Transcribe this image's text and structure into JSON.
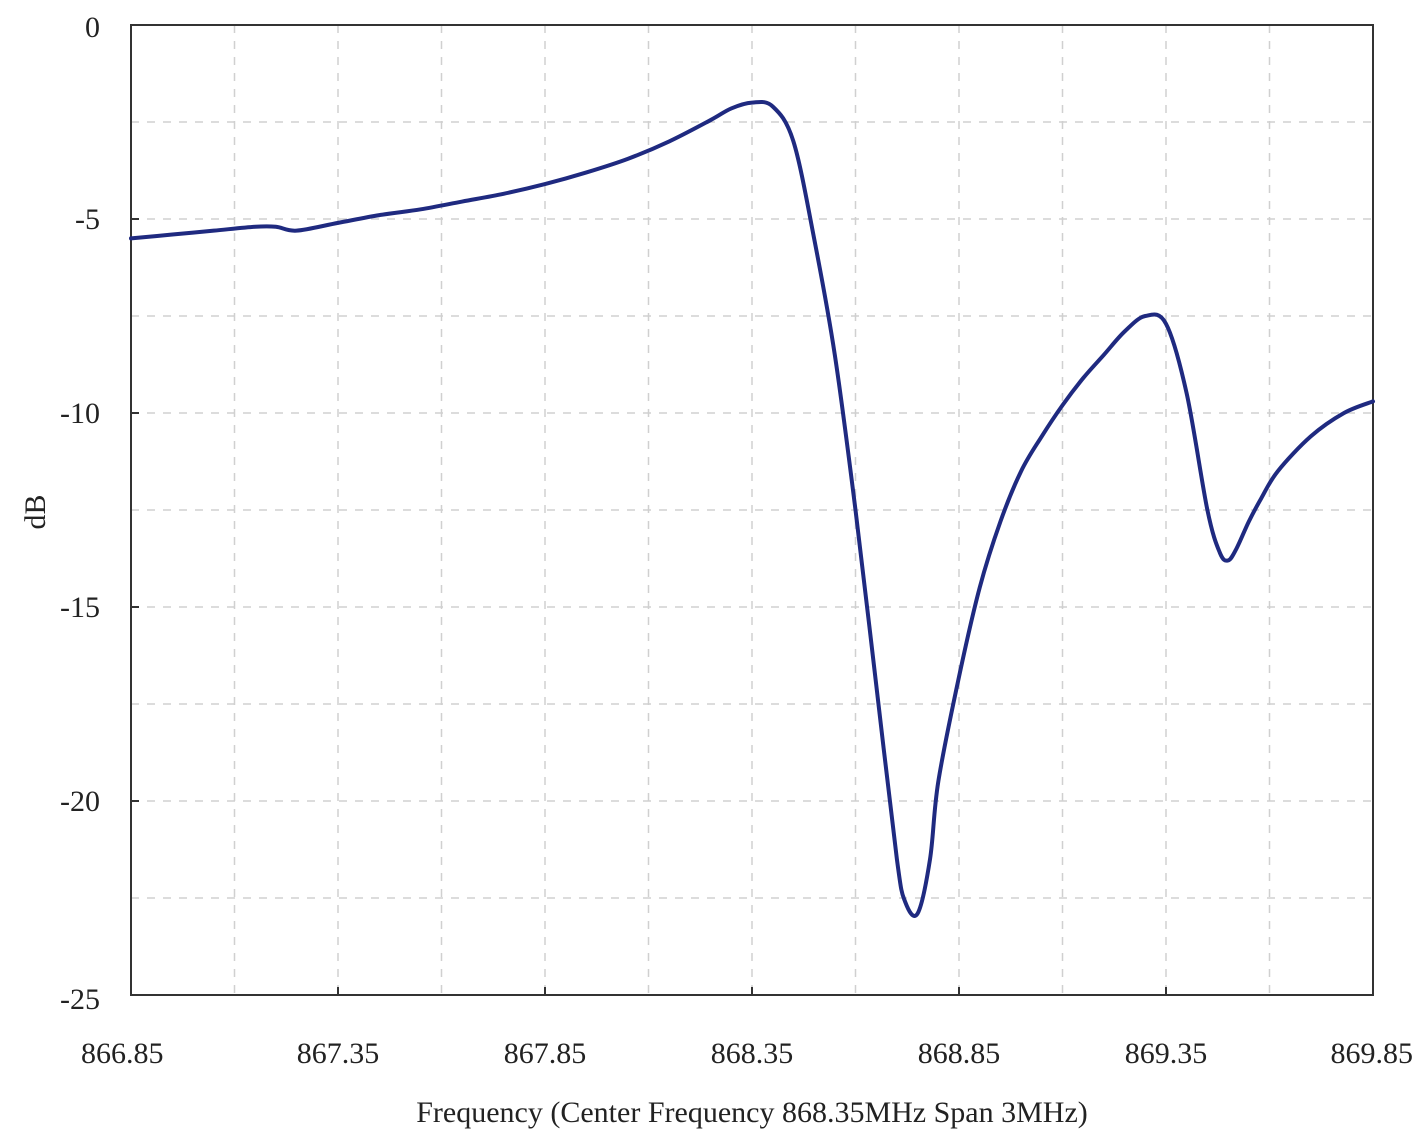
{
  "chart_data": {
    "type": "line",
    "title": "",
    "xlabel": "Frequency (Center Frequency 868.35MHz Span 3MHz)",
    "ylabel": "dB",
    "xlim": [
      866.85,
      869.85
    ],
    "ylim": [
      -25,
      0
    ],
    "x_ticks": [
      "866.85",
      "867.35",
      "867.85",
      "868.35",
      "868.85",
      "869.35",
      "869.85"
    ],
    "y_ticks": [
      "0",
      "-5",
      "-10",
      "-15",
      "-20",
      "-25"
    ],
    "grid": true,
    "line_color": "#1f2a80",
    "series": [
      {
        "x": [
          866.85,
          866.95,
          867.05,
          867.15,
          867.2,
          867.25,
          867.35,
          867.45,
          867.55,
          867.65,
          867.75,
          867.85,
          867.95,
          868.05,
          868.15,
          868.25,
          868.3,
          868.35,
          868.4,
          868.45,
          868.5,
          868.55,
          868.6,
          868.65,
          868.7,
          868.72,
          868.75,
          868.78,
          868.8,
          868.85,
          868.9,
          868.95,
          869.0,
          869.05,
          869.1,
          869.15,
          869.2,
          869.25,
          869.3,
          869.35,
          869.4,
          869.45,
          869.48,
          869.5,
          869.52,
          869.55,
          869.58,
          869.62,
          869.7,
          869.78,
          869.85
        ],
        "values": [
          -5.5,
          -5.4,
          -5.3,
          -5.2,
          -5.2,
          -5.3,
          -5.1,
          -4.9,
          -4.75,
          -4.55,
          -4.35,
          -4.1,
          -3.8,
          -3.45,
          -3.0,
          -2.45,
          -2.15,
          -2.0,
          -2.1,
          -3.0,
          -5.5,
          -8.5,
          -12.5,
          -17.0,
          -21.5,
          -22.6,
          -22.9,
          -21.5,
          -19.5,
          -16.8,
          -14.5,
          -12.8,
          -11.5,
          -10.6,
          -9.8,
          -9.1,
          -8.5,
          -7.9,
          -7.5,
          -7.7,
          -9.5,
          -12.5,
          -13.6,
          -13.8,
          -13.5,
          -12.8,
          -12.2,
          -11.5,
          -10.6,
          -10.0,
          -9.7
        ]
      }
    ]
  }
}
